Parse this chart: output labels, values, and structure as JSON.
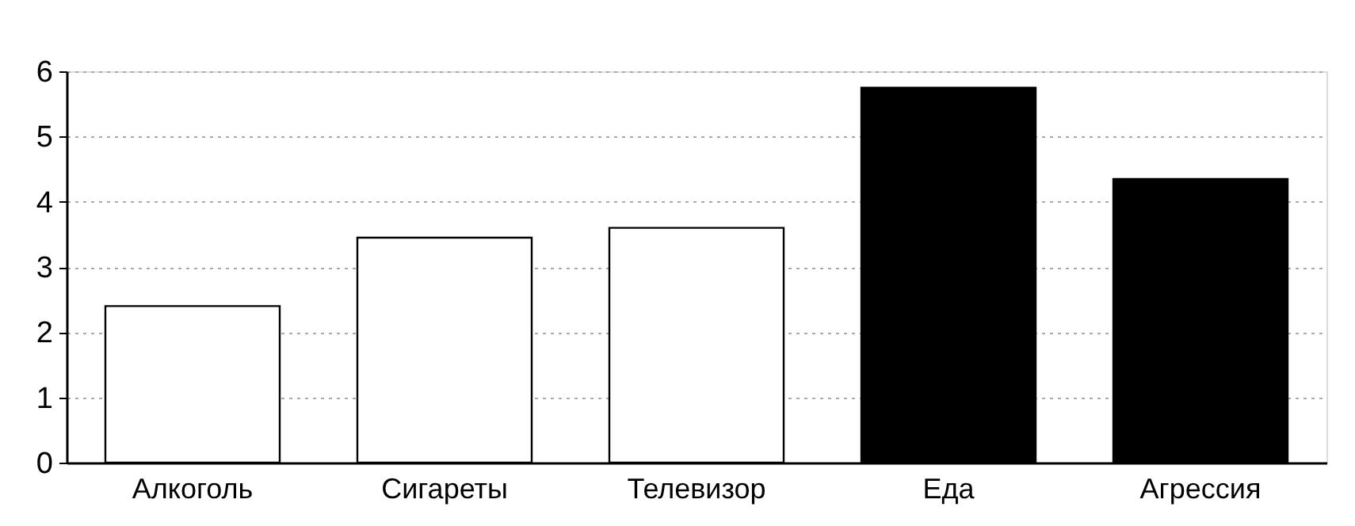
{
  "chart_data": {
    "type": "bar",
    "categories": [
      "Алкоголь",
      "Сигареты",
      "Телевизор",
      "Еда",
      "Агрессия"
    ],
    "values": [
      2.4,
      3.45,
      3.6,
      5.75,
      4.35
    ],
    "colors": [
      "#ffffff",
      "#ffffff",
      "#ffffff",
      "#000000",
      "#000000"
    ],
    "ylim": [
      0,
      6
    ],
    "yticks": [
      0,
      1,
      2,
      3,
      4,
      5,
      6
    ],
    "grid": "y"
  }
}
